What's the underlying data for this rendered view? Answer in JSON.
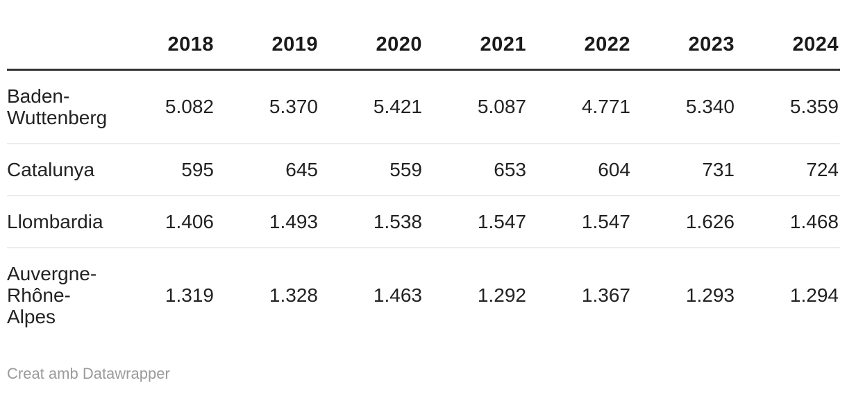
{
  "chart_data": {
    "type": "table",
    "number_format": {
      "thousands_separator": "."
    },
    "columns": [
      "",
      "2018",
      "2019",
      "2020",
      "2021",
      "2022",
      "2023",
      "2024"
    ],
    "rows": [
      {
        "label": "Baden-Wuttenberg",
        "values": [
          "5.082",
          "5.370",
          "5.421",
          "5.087",
          "4.771",
          "5.340",
          "5.359"
        ]
      },
      {
        "label": "Catalunya",
        "values": [
          "595",
          "645",
          "559",
          "653",
          "604",
          "731",
          "724"
        ]
      },
      {
        "label": "Llombardia",
        "values": [
          "1.406",
          "1.493",
          "1.538",
          "1.547",
          "1.547",
          "1.626",
          "1.468"
        ]
      },
      {
        "label": "Auvergne-Rhône-Alpes",
        "values": [
          "1.319",
          "1.328",
          "1.463",
          "1.292",
          "1.367",
          "1.293",
          "1.294"
        ]
      }
    ]
  },
  "footer": {
    "attribution": "Creat amb Datawrapper"
  },
  "colors": {
    "header_rule": "#333333",
    "row_divider": "#ececec",
    "text": "#222222",
    "muted_text": "#9b9b9b",
    "background": "#ffffff"
  }
}
